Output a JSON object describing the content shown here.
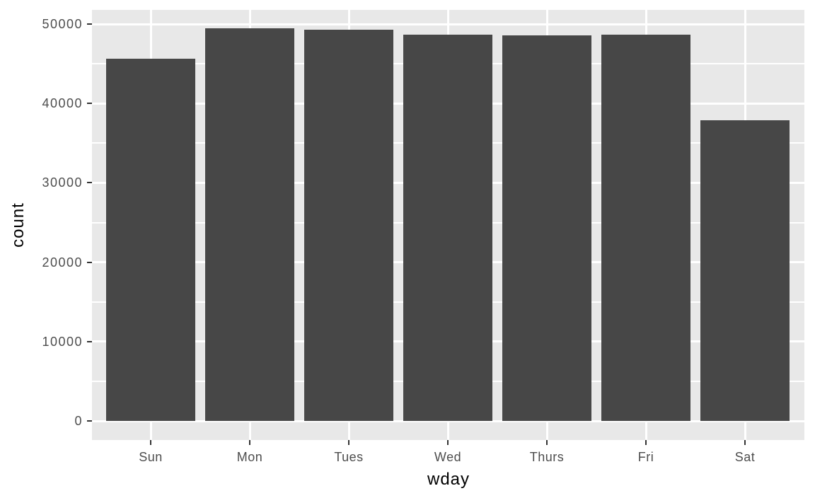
{
  "chart_data": {
    "type": "bar",
    "title": "",
    "xlabel": "wday",
    "ylabel": "count",
    "categories": [
      "Sun",
      "Mon",
      "Tues",
      "Wed",
      "Thurs",
      "Fri",
      "Sat"
    ],
    "values": [
      45630,
      49460,
      49280,
      48660,
      48570,
      48660,
      37860
    ],
    "y_ticks": [
      0,
      10000,
      20000,
      30000,
      40000,
      50000
    ],
    "y_tick_labels": [
      "0",
      "10000",
      "20000",
      "30000",
      "40000",
      "50000"
    ],
    "y_minor_ticks": [
      5000,
      15000,
      25000,
      35000,
      45000
    ],
    "ylim": [
      0,
      50000
    ],
    "grid": "on",
    "legend": "none",
    "theme": "ggplot2-grey",
    "colors": {
      "bar_fill": "#474747",
      "panel_background": "#E8E8E8",
      "gridline": "#FFFFFF",
      "tick_label_text": "#4D4D4D",
      "axis_title_text": "#000000",
      "tick_mark": "#333333",
      "figure_background": "#FFFFFF"
    }
  }
}
